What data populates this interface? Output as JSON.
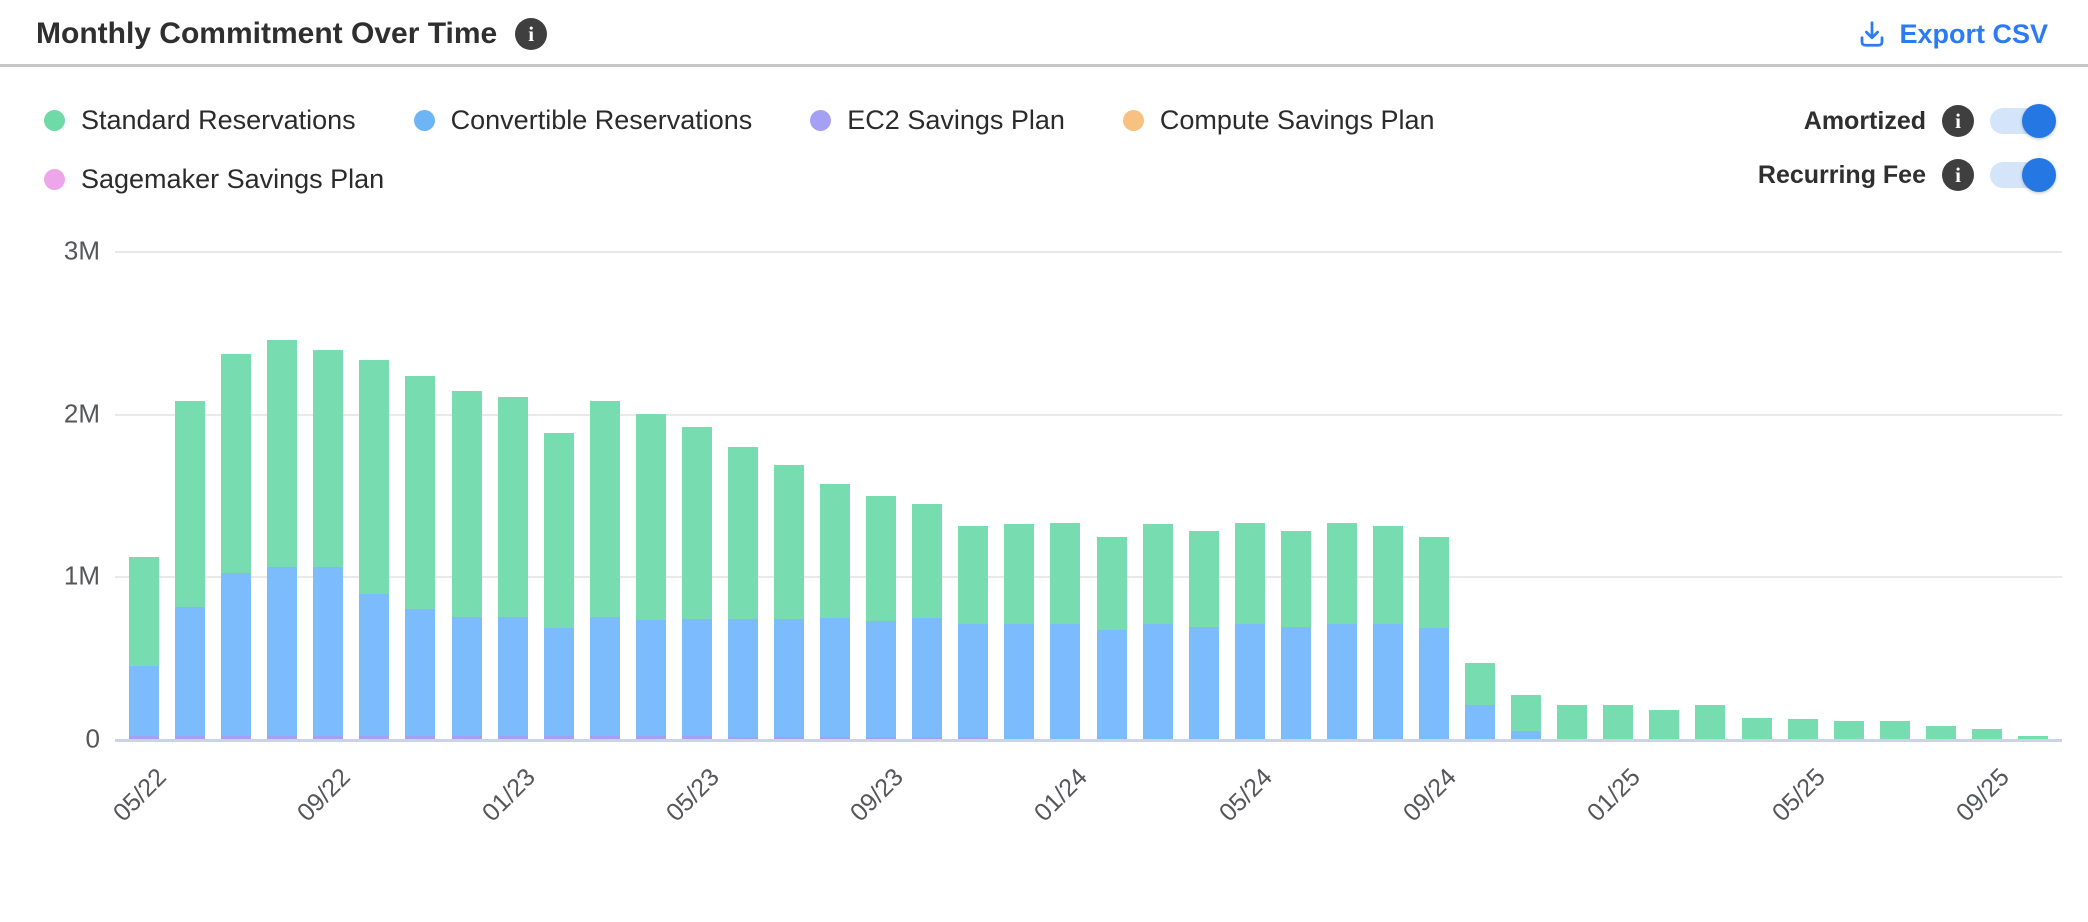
{
  "header": {
    "title": "Monthly Commitment Over Time",
    "title_info_icon": "info-icon",
    "export_label": "Export CSV",
    "export_icon": "download-icon"
  },
  "legend": {
    "items": [
      {
        "label": "Standard Reservations",
        "color": "#6FD9A8"
      },
      {
        "label": "Convertible Reservations",
        "color": "#6EB5F5"
      },
      {
        "label": "EC2 Savings Plan",
        "color": "#A5A0F3"
      },
      {
        "label": "Compute Savings Plan",
        "color": "#F7C180"
      },
      {
        "label": "Sagemaker Savings Plan",
        "color": "#EDA6EC"
      }
    ]
  },
  "toggles": [
    {
      "label": "Amortized",
      "info_icon": "info-icon",
      "on": true
    },
    {
      "label": "Recurring Fee",
      "info_icon": "info-icon",
      "on": true
    }
  ],
  "colors": {
    "link": "#2B7BF3",
    "toggle_on": "#2577E3",
    "toggle_track": "#D4E5FA",
    "gridline": "#E9E9E9",
    "axis_line": "#CBD3EA",
    "axis_text": "#55565A"
  },
  "chart_data": {
    "type": "bar",
    "stacked": true,
    "title": "Monthly Commitment Over Time",
    "xlabel": "",
    "ylabel": "",
    "value_unit": "millions (M)",
    "ylim_m": [
      0,
      3
    ],
    "y_ticks": [
      "3M",
      "2M",
      "1M",
      "0"
    ],
    "x_tick_every": 4,
    "x": [
      "05/22",
      "06/22",
      "07/22",
      "08/22",
      "09/22",
      "10/22",
      "11/22",
      "12/22",
      "01/23",
      "02/23",
      "03/23",
      "04/23",
      "05/23",
      "06/23",
      "07/23",
      "08/23",
      "09/23",
      "10/23",
      "11/23",
      "12/23",
      "01/24",
      "02/24",
      "03/24",
      "04/24",
      "05/24",
      "06/24",
      "07/24",
      "08/24",
      "09/24",
      "10/24",
      "11/24",
      "12/24",
      "01/25",
      "02/25",
      "03/25",
      "04/25",
      "05/25",
      "06/25",
      "07/25",
      "08/25",
      "09/25",
      "10/25"
    ],
    "series": [
      {
        "name": "Sagemaker Savings Plan",
        "color": "#EDA6EC",
        "stack_position": "bottom",
        "values_m": [
          0,
          0,
          0,
          0,
          0,
          0,
          0,
          0,
          0,
          0,
          0,
          0,
          0,
          0,
          0,
          0,
          0,
          0,
          0,
          0,
          0,
          0,
          0,
          0,
          0,
          0,
          0,
          0,
          0,
          0,
          0,
          0,
          0,
          0,
          0,
          0,
          0,
          0,
          0,
          0,
          0,
          0
        ]
      },
      {
        "name": "Compute Savings Plan",
        "color": "#F7C180",
        "stack_position": "second",
        "values_m": [
          0,
          0,
          0,
          0,
          0,
          0,
          0,
          0,
          0,
          0,
          0,
          0,
          0,
          0,
          0,
          0,
          0,
          0,
          0,
          0,
          0,
          0,
          0,
          0,
          0,
          0,
          0,
          0,
          0,
          0,
          0,
          0,
          0,
          0,
          0,
          0,
          0,
          0,
          0,
          0,
          0,
          0
        ]
      },
      {
        "name": "EC2 Savings Plan",
        "color": "#A79FF1",
        "stack_position": "third",
        "values_m": [
          0.02,
          0.02,
          0.02,
          0.02,
          0.02,
          0.02,
          0.02,
          0.02,
          0.02,
          0.02,
          0.02,
          0.02,
          0.02,
          0.015,
          0.015,
          0.015,
          0.015,
          0.015,
          0.01,
          0,
          0,
          0,
          0,
          0,
          0,
          0,
          0,
          0,
          0,
          0,
          0,
          0,
          0,
          0,
          0,
          0,
          0,
          0,
          0,
          0,
          0,
          0
        ]
      },
      {
        "name": "Convertible Reservations",
        "color": "#7CBCFC",
        "stack_position": "fourth",
        "values_m": [
          0.43,
          0.79,
          1.0,
          1.04,
          1.04,
          0.87,
          0.78,
          0.73,
          0.73,
          0.66,
          0.73,
          0.71,
          0.72,
          0.72,
          0.72,
          0.73,
          0.71,
          0.73,
          0.7,
          0.71,
          0.71,
          0.67,
          0.71,
          0.69,
          0.71,
          0.69,
          0.71,
          0.71,
          0.68,
          0.21,
          0.05,
          0,
          0,
          0,
          0,
          0,
          0,
          0,
          0,
          0,
          0,
          0
        ]
      },
      {
        "name": "Standard Reservations",
        "color": "#77DDB1",
        "stack_position": "top",
        "values_m": [
          0.67,
          1.27,
          1.35,
          1.39,
          1.33,
          1.44,
          1.43,
          1.39,
          1.35,
          1.2,
          1.33,
          1.27,
          1.18,
          1.06,
          0.95,
          0.82,
          0.77,
          0.7,
          0.6,
          0.61,
          0.62,
          0.57,
          0.61,
          0.59,
          0.62,
          0.59,
          0.62,
          0.6,
          0.56,
          0.26,
          0.22,
          0.21,
          0.21,
          0.18,
          0.21,
          0.13,
          0.12,
          0.11,
          0.11,
          0.08,
          0.06,
          0.02
        ]
      }
    ],
    "legend_position": "top-left",
    "grid": "horizontal"
  }
}
